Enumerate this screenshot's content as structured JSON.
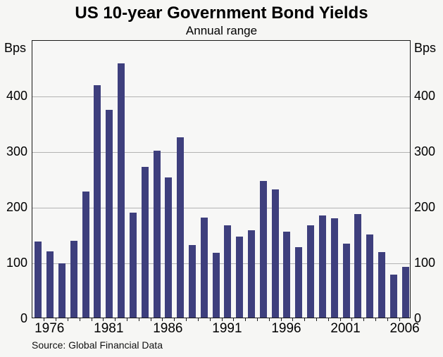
{
  "header": {
    "title": "US 10-year Government Bond Yields",
    "subtitle": "Annual range"
  },
  "axes": {
    "left_unit": "Bps",
    "right_unit": "Bps",
    "y_tick_values": [
      0,
      100,
      200,
      300,
      400
    ],
    "y_max": 500,
    "x_tick_labels": [
      "1976",
      "1981",
      "1986",
      "1991",
      "1996",
      "2001",
      "2006"
    ]
  },
  "footer": {
    "source": "Source: Global Financial Data"
  },
  "colors": {
    "bar": "#3e3f7d",
    "grid": "#b3b3b3",
    "frame": "#1a1a1a",
    "background": "#f6f6f4"
  },
  "chart_data": {
    "type": "bar",
    "title": "US 10-year Government Bond Yields",
    "subtitle": "Annual range",
    "ylabel": "Bps",
    "ylim": [
      0,
      500
    ],
    "grid": true,
    "legend": "none",
    "source": "Source: Global Financial Data",
    "categories": [
      1975,
      1976,
      1977,
      1978,
      1979,
      1980,
      1981,
      1982,
      1983,
      1984,
      1985,
      1986,
      1987,
      1988,
      1989,
      1990,
      1991,
      1992,
      1993,
      1994,
      1995,
      1996,
      1997,
      1998,
      1999,
      2000,
      2001,
      2002,
      2003,
      2004,
      2005,
      2006
    ],
    "values": [
      137,
      119,
      97,
      138,
      226,
      418,
      373,
      457,
      189,
      271,
      300,
      252,
      324,
      130,
      180,
      116,
      166,
      146,
      157,
      246,
      230,
      154,
      127,
      166,
      184,
      178,
      133,
      186,
      149,
      118,
      77,
      91
    ]
  }
}
